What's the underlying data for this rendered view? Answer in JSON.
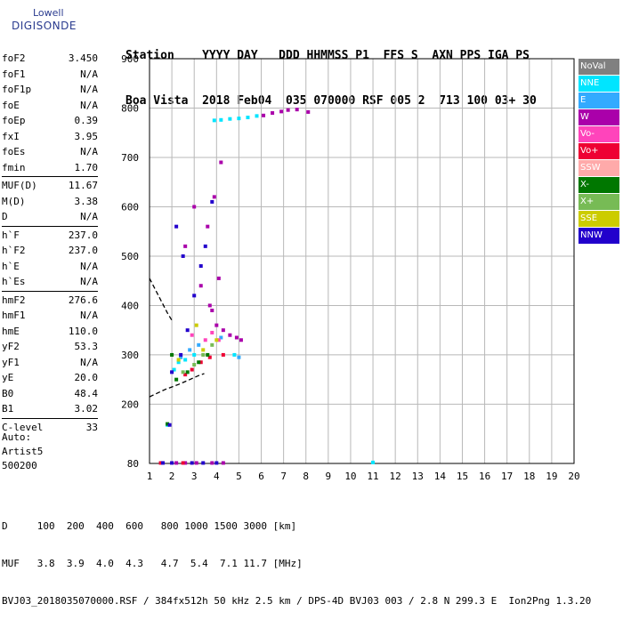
{
  "logo": {
    "line1": "Lowell",
    "line2": "DIGISONDE"
  },
  "header": {
    "row1": "Station    YYYY DAY   DDD HHMMSS P1  FFS S  AXN PPS IGA PS",
    "row2": "Boa Vista  2018 Feb04  035 070000 RSF 005 2  713 100 03+ 30"
  },
  "params": [
    [
      {
        "name": "foF2",
        "value": "3.450"
      },
      {
        "name": "foF1",
        "value": "N/A"
      },
      {
        "name": "foF1p",
        "value": "N/A"
      },
      {
        "name": "foE",
        "value": "N/A"
      },
      {
        "name": "foEp",
        "value": "0.39"
      },
      {
        "name": "fxI",
        "value": "3.95"
      },
      {
        "name": "foEs",
        "value": "N/A"
      },
      {
        "name": "fmin",
        "value": "1.70"
      }
    ],
    [
      {
        "name": "MUF(D)",
        "value": "11.67"
      },
      {
        "name": "M(D)",
        "value": "3.38"
      },
      {
        "name": "D",
        "value": "N/A"
      }
    ],
    [
      {
        "name": "h`F",
        "value": "237.0"
      },
      {
        "name": "h`F2",
        "value": "237.0"
      },
      {
        "name": "h`E",
        "value": "N/A"
      },
      {
        "name": "h`Es",
        "value": "N/A"
      }
    ],
    [
      {
        "name": "hmF2",
        "value": "276.6"
      },
      {
        "name": "hmF1",
        "value": "N/A"
      },
      {
        "name": "hmE",
        "value": "110.0"
      },
      {
        "name": "yF2",
        "value": "53.3"
      },
      {
        "name": "yF1",
        "value": "N/A"
      },
      {
        "name": "yE",
        "value": "20.0"
      },
      {
        "name": "B0",
        "value": "48.4"
      },
      {
        "name": "B1",
        "value": "3.02"
      }
    ],
    [
      {
        "name": "C-level",
        "value": "33"
      }
    ]
  ],
  "auto": {
    "line1": "Auto:",
    "line2": "Artist5",
    "line3": "500200"
  },
  "bottom": {
    "d_row": "D     100  200  400  600   800 1000 1500 3000 [km]",
    "muf_row": "MUF   3.8  3.9  4.0  4.3   4.7  5.4  7.1 11.7 [MHz]",
    "footer": "BVJ03_2018035070000.RSF / 384fx512h 50 kHz 2.5 km / DPS-4D BVJ03 003 / 2.8 N 299.3 E  Ion2Png 1.3.20"
  },
  "legend": [
    {
      "label": "NoVal",
      "color": "#808080"
    },
    {
      "label": "NNE",
      "color": "#00e5ff"
    },
    {
      "label": "E",
      "color": "#33aaff"
    },
    {
      "label": "W",
      "color": "#aa00aa"
    },
    {
      "label": "Vo-",
      "color": "#ff44bb"
    },
    {
      "label": "Vo+",
      "color": "#ee0033"
    },
    {
      "label": "SSW",
      "color": "#ffaaaa"
    },
    {
      "label": "X-",
      "color": "#007700"
    },
    {
      "label": "X+",
      "color": "#77bb55"
    },
    {
      "label": "SSE",
      "color": "#cccc00"
    },
    {
      "label": "NNW",
      "color": "#2200cc"
    }
  ],
  "chart_data": {
    "type": "scatter",
    "title": "",
    "xlabel": "",
    "ylabel": "",
    "xlim": [
      1,
      20
    ],
    "ylim": [
      80,
      900
    ],
    "x_ticks": [
      1,
      2,
      3,
      4,
      5,
      6,
      7,
      8,
      9,
      10,
      11,
      12,
      13,
      14,
      15,
      16,
      17,
      18,
      19,
      20
    ],
    "y_ticks": [
      80,
      200,
      300,
      400,
      500,
      600,
      700,
      800,
      900
    ],
    "grid": true,
    "series": [
      {
        "name": "NNE",
        "color": "#00e5ff",
        "points": [
          [
            3.9,
            775
          ],
          [
            4.2,
            776
          ],
          [
            4.6,
            778
          ],
          [
            5.0,
            779
          ],
          [
            5.4,
            781
          ],
          [
            5.8,
            784
          ],
          [
            2.3,
            285
          ],
          [
            2.6,
            290
          ],
          [
            3.0,
            300
          ],
          [
            2.1,
            270
          ],
          [
            4.8,
            300
          ],
          [
            1.8,
            158
          ],
          [
            11.0,
            82
          ]
        ]
      },
      {
        "name": "E",
        "color": "#33aaff",
        "points": [
          [
            2.4,
            295
          ],
          [
            2.8,
            310
          ],
          [
            3.2,
            320
          ],
          [
            4.2,
            335
          ],
          [
            5.0,
            295
          ]
        ]
      },
      {
        "name": "W",
        "color": "#aa00aa",
        "points": [
          [
            6.1,
            785
          ],
          [
            6.5,
            790
          ],
          [
            6.9,
            793
          ],
          [
            7.2,
            796
          ],
          [
            7.6,
            797
          ],
          [
            8.1,
            792
          ],
          [
            4.0,
            360
          ],
          [
            4.3,
            350
          ],
          [
            4.6,
            340
          ],
          [
            4.9,
            335
          ],
          [
            5.1,
            330
          ],
          [
            3.8,
            390
          ],
          [
            4.1,
            455
          ],
          [
            3.9,
            620
          ],
          [
            3.6,
            560
          ],
          [
            4.2,
            690
          ],
          [
            2.6,
            520
          ],
          [
            3.0,
            600
          ],
          [
            3.3,
            440
          ],
          [
            3.7,
            400
          ],
          [
            2.2,
            81
          ],
          [
            2.6,
            81
          ],
          [
            3.1,
            81
          ],
          [
            3.8,
            81
          ],
          [
            4.3,
            81
          ]
        ]
      },
      {
        "name": "Vo-",
        "color": "#ff44bb",
        "points": [
          [
            3.5,
            330
          ],
          [
            3.8,
            345
          ],
          [
            4.1,
            330
          ],
          [
            2.9,
            340
          ]
        ]
      },
      {
        "name": "Vo+",
        "color": "#ee0033",
        "points": [
          [
            2.9,
            270
          ],
          [
            3.3,
            285
          ],
          [
            3.7,
            295
          ],
          [
            4.3,
            300
          ],
          [
            2.6,
            260
          ],
          [
            1.5,
            81
          ],
          [
            2.5,
            81
          ]
        ]
      },
      {
        "name": "X-",
        "color": "#007700",
        "points": [
          [
            2.2,
            250
          ],
          [
            2.7,
            265
          ],
          [
            3.2,
            285
          ],
          [
            3.6,
            300
          ],
          [
            2.0,
            300
          ],
          [
            1.8,
            160
          ]
        ]
      },
      {
        "name": "X+",
        "color": "#77bb55",
        "points": [
          [
            3.0,
            280
          ],
          [
            3.4,
            300
          ],
          [
            2.5,
            265
          ],
          [
            3.8,
            320
          ]
        ]
      },
      {
        "name": "SSE",
        "color": "#cccc00",
        "points": [
          [
            2.3,
            290
          ],
          [
            3.4,
            310
          ],
          [
            4.0,
            330
          ],
          [
            3.1,
            360
          ]
        ]
      },
      {
        "name": "NNW",
        "color": "#2200cc",
        "points": [
          [
            2.0,
            265
          ],
          [
            2.4,
            300
          ],
          [
            2.7,
            350
          ],
          [
            3.0,
            420
          ],
          [
            3.3,
            480
          ],
          [
            3.5,
            520
          ],
          [
            3.8,
            610
          ],
          [
            2.2,
            560
          ],
          [
            2.5,
            500
          ],
          [
            1.9,
            158
          ],
          [
            1.6,
            81
          ],
          [
            2.0,
            81
          ],
          [
            2.9,
            81
          ],
          [
            3.4,
            81
          ],
          [
            4.0,
            81
          ]
        ]
      }
    ],
    "trace": {
      "style": "dashed",
      "points": [
        [
          1.0,
          215
        ],
        [
          1.7,
          230
        ],
        [
          2.3,
          240
        ],
        [
          2.8,
          250
        ],
        [
          3.2,
          258
        ],
        [
          3.45,
          262
        ]
      ]
    },
    "trace_high": {
      "style": "dashed",
      "points": [
        [
          1.0,
          455
        ],
        [
          1.4,
          420
        ],
        [
          1.8,
          385
        ],
        [
          2.0,
          370
        ]
      ]
    }
  }
}
